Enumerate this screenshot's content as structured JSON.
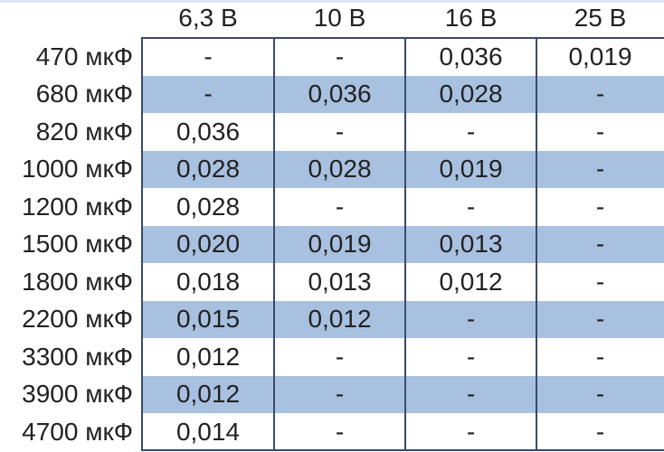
{
  "table": {
    "columns": [
      "6,3 В",
      "10 В",
      "16 В",
      "25 В"
    ],
    "rows": [
      {
        "label": "470 мкФ",
        "cells": [
          "-",
          "-",
          "0,036",
          "0,019"
        ]
      },
      {
        "label": "680 мкФ",
        "cells": [
          "-",
          "0,036",
          "0,028",
          "-"
        ]
      },
      {
        "label": "820 мкФ",
        "cells": [
          "0,036",
          "-",
          "-",
          "-"
        ]
      },
      {
        "label": "1000 мкФ",
        "cells": [
          "0,028",
          "0,028",
          "0,019",
          "-"
        ]
      },
      {
        "label": "1200 мкФ",
        "cells": [
          "0,028",
          "-",
          "-",
          "-"
        ]
      },
      {
        "label": "1500 мкФ",
        "cells": [
          "0,020",
          "0,019",
          "0,013",
          "-"
        ]
      },
      {
        "label": "1800 мкФ",
        "cells": [
          "0,018",
          "0,013",
          "0,012",
          "-"
        ]
      },
      {
        "label": "2200 мкФ",
        "cells": [
          "0,015",
          "0,012",
          "-",
          "-"
        ]
      },
      {
        "label": "3300 мкФ",
        "cells": [
          "0,012",
          "-",
          "-",
          "-"
        ]
      },
      {
        "label": "3900 мкФ",
        "cells": [
          "0,012",
          "-",
          "-",
          "-"
        ]
      },
      {
        "label": "4700 мкФ",
        "cells": [
          "0,014",
          "-",
          "-",
          "-"
        ]
      }
    ]
  }
}
